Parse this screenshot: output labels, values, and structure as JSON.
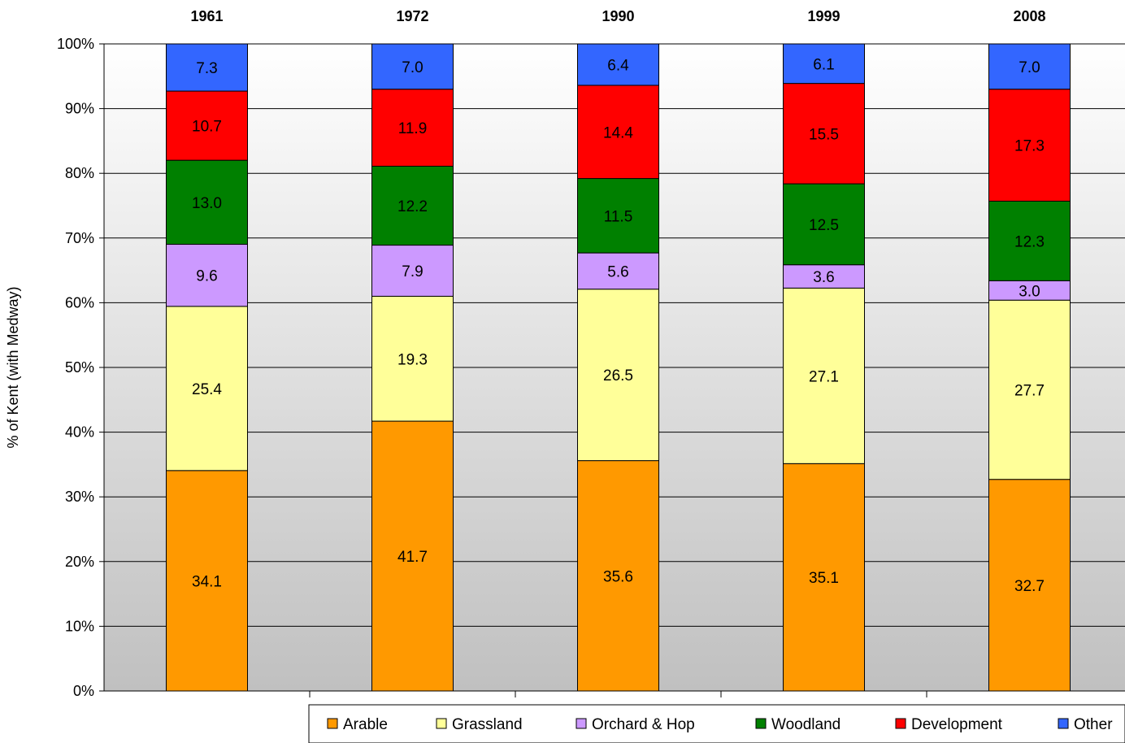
{
  "chart_data": {
    "type": "bar",
    "stacked": true,
    "percent_stacked": true,
    "categories": [
      "1961",
      "1972",
      "1990",
      "1999",
      "2008"
    ],
    "ylabel": "% of Kent (with Medway)",
    "xlabel": "",
    "ylim": [
      0,
      100
    ],
    "y_ticks": [
      "0%",
      "10%",
      "20%",
      "30%",
      "40%",
      "50%",
      "60%",
      "70%",
      "80%",
      "90%",
      "100%"
    ],
    "grid": true,
    "legend_position": "bottom-right",
    "series": [
      {
        "name": "Arable",
        "color": "#FF9900",
        "values": [
          34.1,
          41.7,
          35.6,
          35.1,
          32.7
        ]
      },
      {
        "name": "Grassland",
        "color": "#FFFF99",
        "values": [
          25.4,
          19.3,
          26.5,
          27.1,
          27.7
        ]
      },
      {
        "name": "Orchard & Hop",
        "color": "#CC99FF",
        "values": [
          9.6,
          7.9,
          5.6,
          3.6,
          3.0
        ]
      },
      {
        "name": "Woodland",
        "color": "#008000",
        "values": [
          13.0,
          12.2,
          11.5,
          12.5,
          12.3
        ]
      },
      {
        "name": "Development",
        "color": "#FF0000",
        "values": [
          10.7,
          11.9,
          14.4,
          15.5,
          17.3
        ]
      },
      {
        "name": "Other",
        "color": "#3366FF",
        "values": [
          7.3,
          7.0,
          6.4,
          6.1,
          7.0
        ]
      }
    ]
  }
}
